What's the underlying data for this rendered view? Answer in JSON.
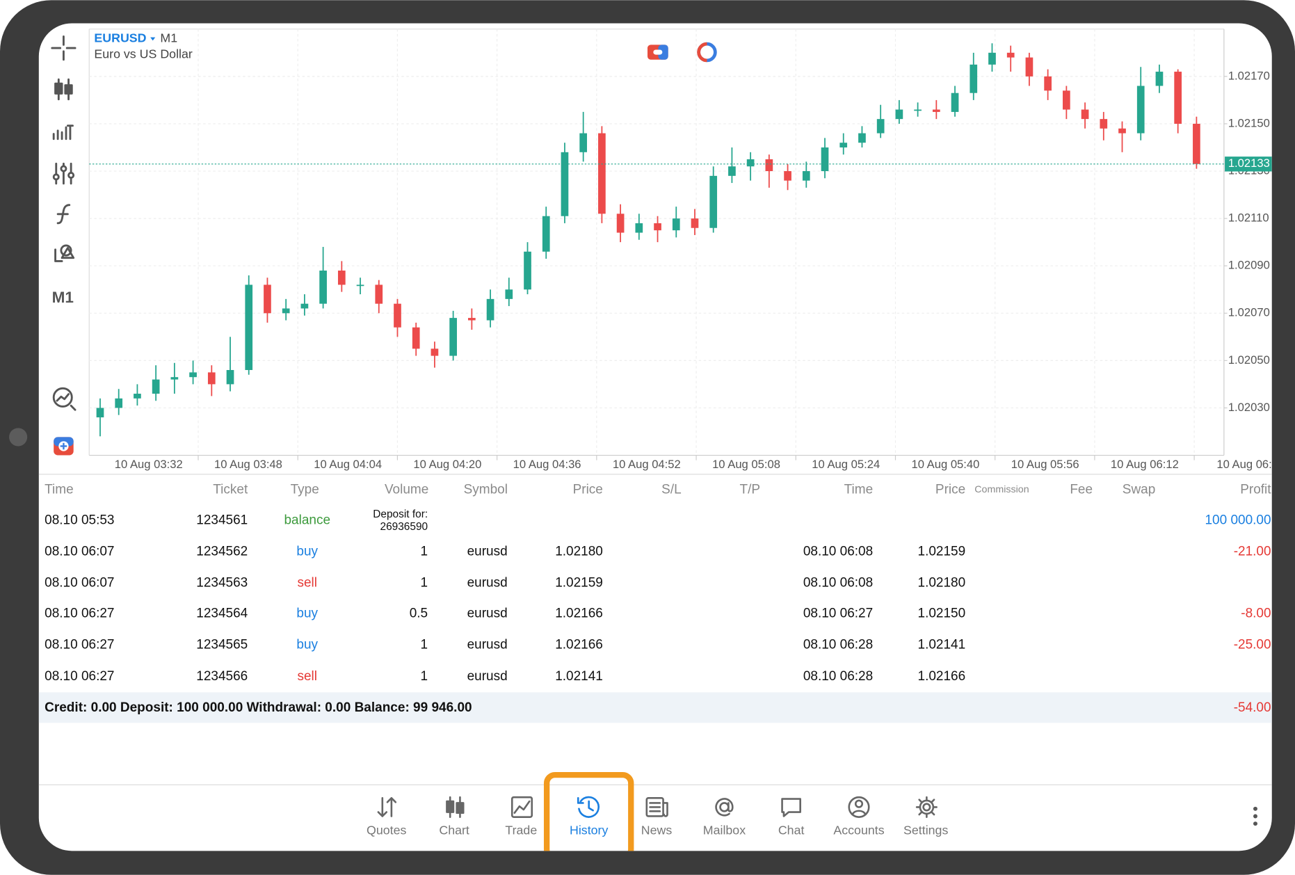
{
  "chart_data": {
    "type": "candlestick",
    "title": "EURUSD",
    "timeframe": "M1",
    "subtitle": "Euro vs US Dollar",
    "up_color": "#26a68f",
    "down_color": "#ec4b4b",
    "grid": true,
    "ylim": [
      1.0201,
      1.0219
    ],
    "yticks": [
      {
        "value": 1.0203,
        "label": "1.02030"
      },
      {
        "value": 1.0205,
        "label": "1.02050"
      },
      {
        "value": 1.0207,
        "label": "1.02070"
      },
      {
        "value": 1.0209,
        "label": "1.02090"
      },
      {
        "value": 1.0211,
        "label": "1.02110"
      },
      {
        "value": 1.0213,
        "label": "1.02130"
      },
      {
        "value": 1.0215,
        "label": "1.02150"
      },
      {
        "value": 1.0217,
        "label": "1.02170"
      }
    ],
    "current_price": 1.02133,
    "x_labels": [
      "10 Aug 03:32",
      "10 Aug 03:48",
      "10 Aug 04:04",
      "10 Aug 04:20",
      "10 Aug 04:36",
      "10 Aug 04:52",
      "10 Aug 05:08",
      "10 Aug 05:24",
      "10 Aug 05:40",
      "10 Aug 05:56",
      "10 Aug 06:12",
      "10 Aug 06:"
    ],
    "candles": [
      [
        1.02026,
        1.02034,
        1.02018,
        1.0203
      ],
      [
        1.0203,
        1.02038,
        1.02027,
        1.02034
      ],
      [
        1.02034,
        1.0204,
        1.02031,
        1.02036
      ],
      [
        1.02036,
        1.02048,
        1.02033,
        1.02042
      ],
      [
        1.02042,
        1.02049,
        1.02036,
        1.02043
      ],
      [
        1.02043,
        1.0205,
        1.0204,
        1.02045
      ],
      [
        1.02045,
        1.02048,
        1.02035,
        1.0204
      ],
      [
        1.0204,
        1.0206,
        1.02037,
        1.02046
      ],
      [
        1.02046,
        1.02086,
        1.02044,
        1.02082
      ],
      [
        1.02082,
        1.02085,
        1.02066,
        1.0207
      ],
      [
        1.0207,
        1.02076,
        1.02067,
        1.02072
      ],
      [
        1.02072,
        1.02078,
        1.02069,
        1.02074
      ],
      [
        1.02074,
        1.02098,
        1.02072,
        1.02088
      ],
      [
        1.02088,
        1.02092,
        1.02079,
        1.02082
      ],
      [
        1.02082,
        1.02085,
        1.02078,
        1.02082
      ],
      [
        1.02082,
        1.02084,
        1.0207,
        1.02074
      ],
      [
        1.02074,
        1.02076,
        1.0206,
        1.02064
      ],
      [
        1.02064,
        1.02066,
        1.02052,
        1.02055
      ],
      [
        1.02055,
        1.02058,
        1.02047,
        1.02052
      ],
      [
        1.02052,
        1.02071,
        1.0205,
        1.02068
      ],
      [
        1.02068,
        1.02072,
        1.02063,
        1.02067
      ],
      [
        1.02067,
        1.0208,
        1.02064,
        1.02076
      ],
      [
        1.02076,
        1.02085,
        1.02073,
        1.0208
      ],
      [
        1.0208,
        1.021,
        1.02078,
        1.02096
      ],
      [
        1.02096,
        1.02115,
        1.02093,
        1.02111
      ],
      [
        1.02111,
        1.02142,
        1.02108,
        1.02138
      ],
      [
        1.02138,
        1.02155,
        1.02134,
        1.02146
      ],
      [
        1.02146,
        1.02149,
        1.02108,
        1.02112
      ],
      [
        1.02112,
        1.02116,
        1.021,
        1.02104
      ],
      [
        1.02104,
        1.02112,
        1.02101,
        1.02108
      ],
      [
        1.02108,
        1.02111,
        1.021,
        1.02105
      ],
      [
        1.02105,
        1.02115,
        1.02102,
        1.0211
      ],
      [
        1.0211,
        1.02114,
        1.02103,
        1.02106
      ],
      [
        1.02106,
        1.02132,
        1.02104,
        1.02128
      ],
      [
        1.02128,
        1.0214,
        1.02125,
        1.02132
      ],
      [
        1.02132,
        1.02138,
        1.02126,
        1.02135
      ],
      [
        1.02135,
        1.02137,
        1.02123,
        1.0213
      ],
      [
        1.0213,
        1.02133,
        1.02122,
        1.02126
      ],
      [
        1.02126,
        1.02134,
        1.02123,
        1.0213
      ],
      [
        1.0213,
        1.02144,
        1.02127,
        1.0214
      ],
      [
        1.0214,
        1.02146,
        1.02137,
        1.02142
      ],
      [
        1.02142,
        1.02149,
        1.0214,
        1.02146
      ],
      [
        1.02146,
        1.02158,
        1.02144,
        1.02152
      ],
      [
        1.02152,
        1.0216,
        1.0215,
        1.02156
      ],
      [
        1.02156,
        1.02159,
        1.02153,
        1.02156
      ],
      [
        1.02156,
        1.0216,
        1.02152,
        1.02155
      ],
      [
        1.02155,
        1.02166,
        1.02153,
        1.02163
      ],
      [
        1.02163,
        1.0218,
        1.0216,
        1.02175
      ],
      [
        1.02175,
        1.02184,
        1.02172,
        1.0218
      ],
      [
        1.0218,
        1.02183,
        1.02172,
        1.02178
      ],
      [
        1.02178,
        1.0218,
        1.02166,
        1.0217
      ],
      [
        1.0217,
        1.02173,
        1.0216,
        1.02164
      ],
      [
        1.02164,
        1.02166,
        1.02152,
        1.02156
      ],
      [
        1.02156,
        1.02159,
        1.02148,
        1.02152
      ],
      [
        1.02152,
        1.02155,
        1.02143,
        1.02148
      ],
      [
        1.02148,
        1.02151,
        1.02138,
        1.02146
      ],
      [
        1.02146,
        1.02174,
        1.02143,
        1.02166
      ],
      [
        1.02166,
        1.02175,
        1.02163,
        1.02172
      ],
      [
        1.02172,
        1.02173,
        1.02146,
        1.0215
      ],
      [
        1.0215,
        1.02153,
        1.02131,
        1.02133
      ]
    ]
  },
  "toolbar": {
    "timeframe": "M1"
  },
  "history": {
    "columns": [
      "Time",
      "Ticket",
      "Type",
      "Volume",
      "Symbol",
      "Price",
      "S/L",
      "T/P",
      "Time",
      "Price",
      "Commission",
      "Fee",
      "Swap",
      "Profit"
    ],
    "rows": [
      {
        "time": "08.10 05:53",
        "ticket": "1234561",
        "type": "balance",
        "type_color": "#3c9a3c",
        "comment": [
          "Deposit for:",
          "26936590"
        ],
        "profit": "100 000.00",
        "profit_color": "#1a7fe0"
      },
      {
        "time": "08.10 06:07",
        "ticket": "1234562",
        "type": "buy",
        "type_color": "#1a7fe0",
        "volume": "1",
        "symbol": "eurusd",
        "price": "1.02180",
        "close_time": "08.10 06:08",
        "close_price": "1.02159",
        "profit": "-21.00",
        "profit_color": "#e53935"
      },
      {
        "time": "08.10 06:07",
        "ticket": "1234563",
        "type": "sell",
        "type_color": "#e53935",
        "volume": "1",
        "symbol": "eurusd",
        "price": "1.02159",
        "close_time": "08.10 06:08",
        "close_price": "1.02180"
      },
      {
        "time": "08.10 06:27",
        "ticket": "1234564",
        "type": "buy",
        "type_color": "#1a7fe0",
        "volume": "0.5",
        "symbol": "eurusd",
        "price": "1.02166",
        "close_time": "08.10 06:27",
        "close_price": "1.02150",
        "profit": "-8.00",
        "profit_color": "#e53935"
      },
      {
        "time": "08.10 06:27",
        "ticket": "1234565",
        "type": "buy",
        "type_color": "#1a7fe0",
        "volume": "1",
        "symbol": "eurusd",
        "price": "1.02166",
        "close_time": "08.10 06:28",
        "close_price": "1.02141",
        "profit": "-25.00",
        "profit_color": "#e53935"
      },
      {
        "time": "08.10 06:27",
        "ticket": "1234566",
        "type": "sell",
        "type_color": "#e53935",
        "volume": "1",
        "symbol": "eurusd",
        "price": "1.02141",
        "close_time": "08.10 06:28",
        "close_price": "1.02166"
      }
    ],
    "summary": "Credit: 0.00 Deposit: 100 000.00 Withdrawal: 0.00 Balance: 99 946.00",
    "total_profit": "-54.00",
    "total_profit_color": "#e53935"
  },
  "nav": {
    "items": [
      "Quotes",
      "Chart",
      "Trade",
      "History",
      "News",
      "Mailbox",
      "Chat",
      "Accounts",
      "Settings"
    ],
    "active": 3,
    "active_color": "#1a7fe0",
    "color": "#777777"
  }
}
